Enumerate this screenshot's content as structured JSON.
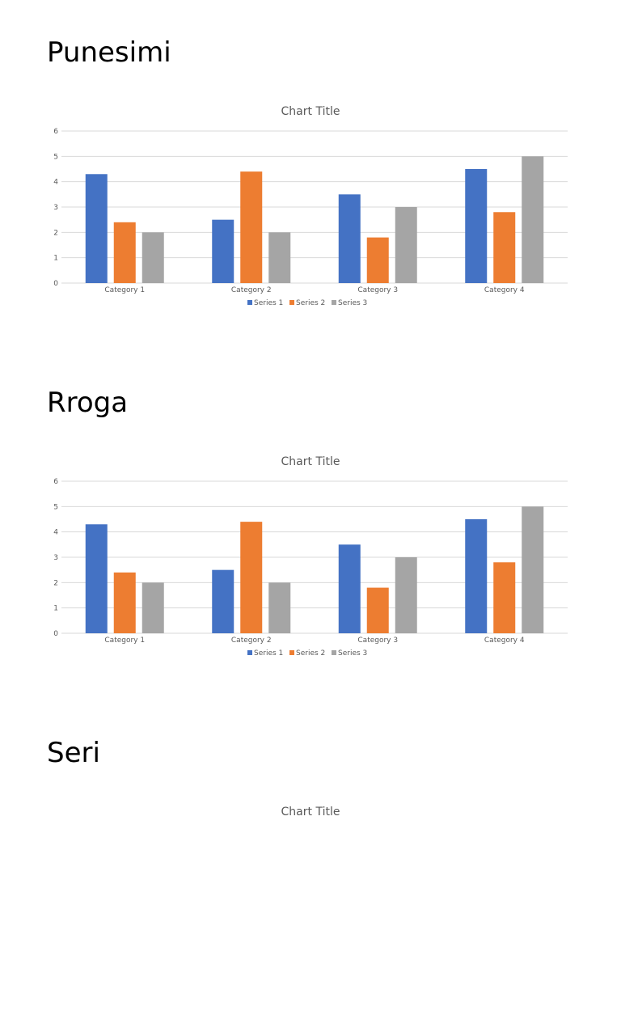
{
  "sections": [
    {
      "heading": "Punesimi"
    },
    {
      "heading": "Rroga"
    },
    {
      "heading": "Seri"
    }
  ],
  "colors": {
    "series1": "#4472C4",
    "series2": "#ED7D31",
    "series3": "#A5A5A5",
    "grid": "#D9D9D9",
    "text": "#595959"
  },
  "chart_data": [
    {
      "type": "bar",
      "title": "Chart Title",
      "categories": [
        "Category 1",
        "Category 2",
        "Category 3",
        "Category 4"
      ],
      "series": [
        {
          "name": "Series 1",
          "values": [
            4.3,
            2.5,
            3.5,
            4.5
          ]
        },
        {
          "name": "Series 2",
          "values": [
            2.4,
            4.4,
            1.8,
            2.8
          ]
        },
        {
          "name": "Series 3",
          "values": [
            2,
            2,
            3,
            5
          ]
        }
      ],
      "yticks": [
        "0",
        "1",
        "2",
        "3",
        "4",
        "5",
        "6"
      ],
      "ylim": [
        0,
        6
      ],
      "legend": "bottom"
    },
    {
      "type": "bar",
      "title": "Chart Title",
      "categories": [
        "Category 1",
        "Category 2",
        "Category 3",
        "Category 4"
      ],
      "series": [
        {
          "name": "Series 1",
          "values": [
            4.3,
            2.5,
            3.5,
            4.5
          ]
        },
        {
          "name": "Series 2",
          "values": [
            2.4,
            4.4,
            1.8,
            2.8
          ]
        },
        {
          "name": "Series 3",
          "values": [
            2,
            2,
            3,
            5
          ]
        }
      ],
      "yticks": [
        "0",
        "1",
        "2",
        "3",
        "4",
        "5",
        "6"
      ],
      "ylim": [
        0,
        6
      ],
      "legend": "bottom"
    },
    {
      "type": "bar",
      "title": "Chart Title"
    }
  ]
}
